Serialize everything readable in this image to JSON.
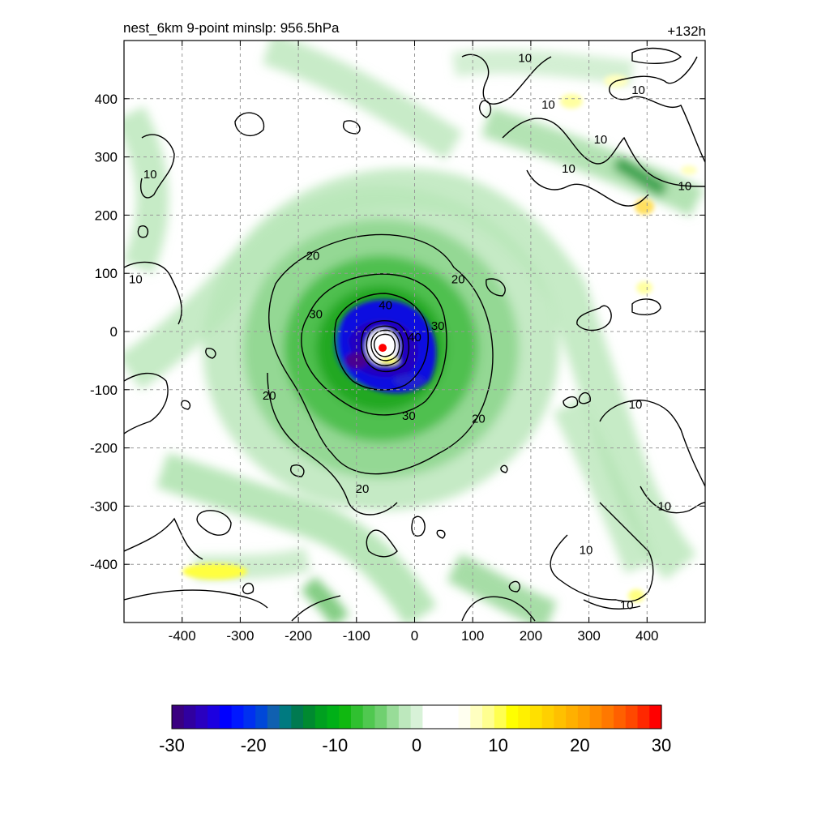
{
  "chart_data": {
    "type": "contour",
    "title_left": "nest_6km  9-point minslp: 956.5hPa",
    "title_right": "+132h",
    "xlim": [
      -500,
      500
    ],
    "ylim": [
      -500,
      500
    ],
    "x_ticks": [
      -400,
      -300,
      -200,
      -100,
      0,
      100,
      200,
      300,
      400
    ],
    "y_ticks": [
      400,
      300,
      200,
      100,
      0,
      -100,
      -200,
      -300,
      -400
    ],
    "grid": "dashed",
    "center_marker": {
      "x": -55,
      "y": -28,
      "color": "#ff0000"
    },
    "contour_levels": [
      10,
      20,
      30,
      40
    ],
    "contour_labels": [
      {
        "text": "10",
        "x": 190,
        "y": 470
      },
      {
        "text": "10",
        "x": 230,
        "y": 390
      },
      {
        "text": "10",
        "x": 385,
        "y": 415
      },
      {
        "text": "10",
        "x": 320,
        "y": 330
      },
      {
        "text": "10",
        "x": 265,
        "y": 280
      },
      {
        "text": "10",
        "x": 465,
        "y": 250
      },
      {
        "text": "10",
        "x": -455,
        "y": 270
      },
      {
        "text": "10",
        "x": -480,
        "y": 90
      },
      {
        "text": "10",
        "x": 380,
        "y": -125
      },
      {
        "text": "10",
        "x": 430,
        "y": -300
      },
      {
        "text": "10",
        "x": 295,
        "y": -375
      },
      {
        "text": "10",
        "x": 365,
        "y": -470
      },
      {
        "text": "20",
        "x": -175,
        "y": 130
      },
      {
        "text": "20",
        "x": 75,
        "y": 90
      },
      {
        "text": "20",
        "x": -250,
        "y": -110
      },
      {
        "text": "20",
        "x": 110,
        "y": -150
      },
      {
        "text": "20",
        "x": -90,
        "y": -270
      },
      {
        "text": "30",
        "x": -170,
        "y": 30
      },
      {
        "text": "30",
        "x": 40,
        "y": 10
      },
      {
        "text": "30",
        "x": -10,
        "y": -145
      },
      {
        "text": "40",
        "x": -50,
        "y": 45
      },
      {
        "text": "40",
        "x": 0,
        "y": -10
      }
    ],
    "colorbar": {
      "ticks": [
        "-30",
        "-20",
        "-10",
        "0",
        "10",
        "20",
        "30"
      ],
      "range": [
        -30,
        30
      ],
      "colors": [
        "#3a0080",
        "#3000a0",
        "#2a00c0",
        "#1c00e0",
        "#0000ff",
        "#0018ff",
        "#0030f0",
        "#0048d8",
        "#1060b0",
        "#007a80",
        "#007a50",
        "#008a30",
        "#00a020",
        "#00b018",
        "#10b810",
        "#30c030",
        "#50c850",
        "#70d070",
        "#98dc98",
        "#bde8bd",
        "#d8f2d8",
        "#ffffff",
        "#ffffff",
        "#ffffff",
        "#fffff0",
        "#ffffc0",
        "#ffff90",
        "#ffff50",
        "#ffff00",
        "#fff000",
        "#ffe000",
        "#ffd000",
        "#ffc000",
        "#ffb000",
        "#ffa000",
        "#ff8c00",
        "#ff7800",
        "#ff6000",
        "#ff4800",
        "#ff2800",
        "#ff0000"
      ]
    }
  }
}
